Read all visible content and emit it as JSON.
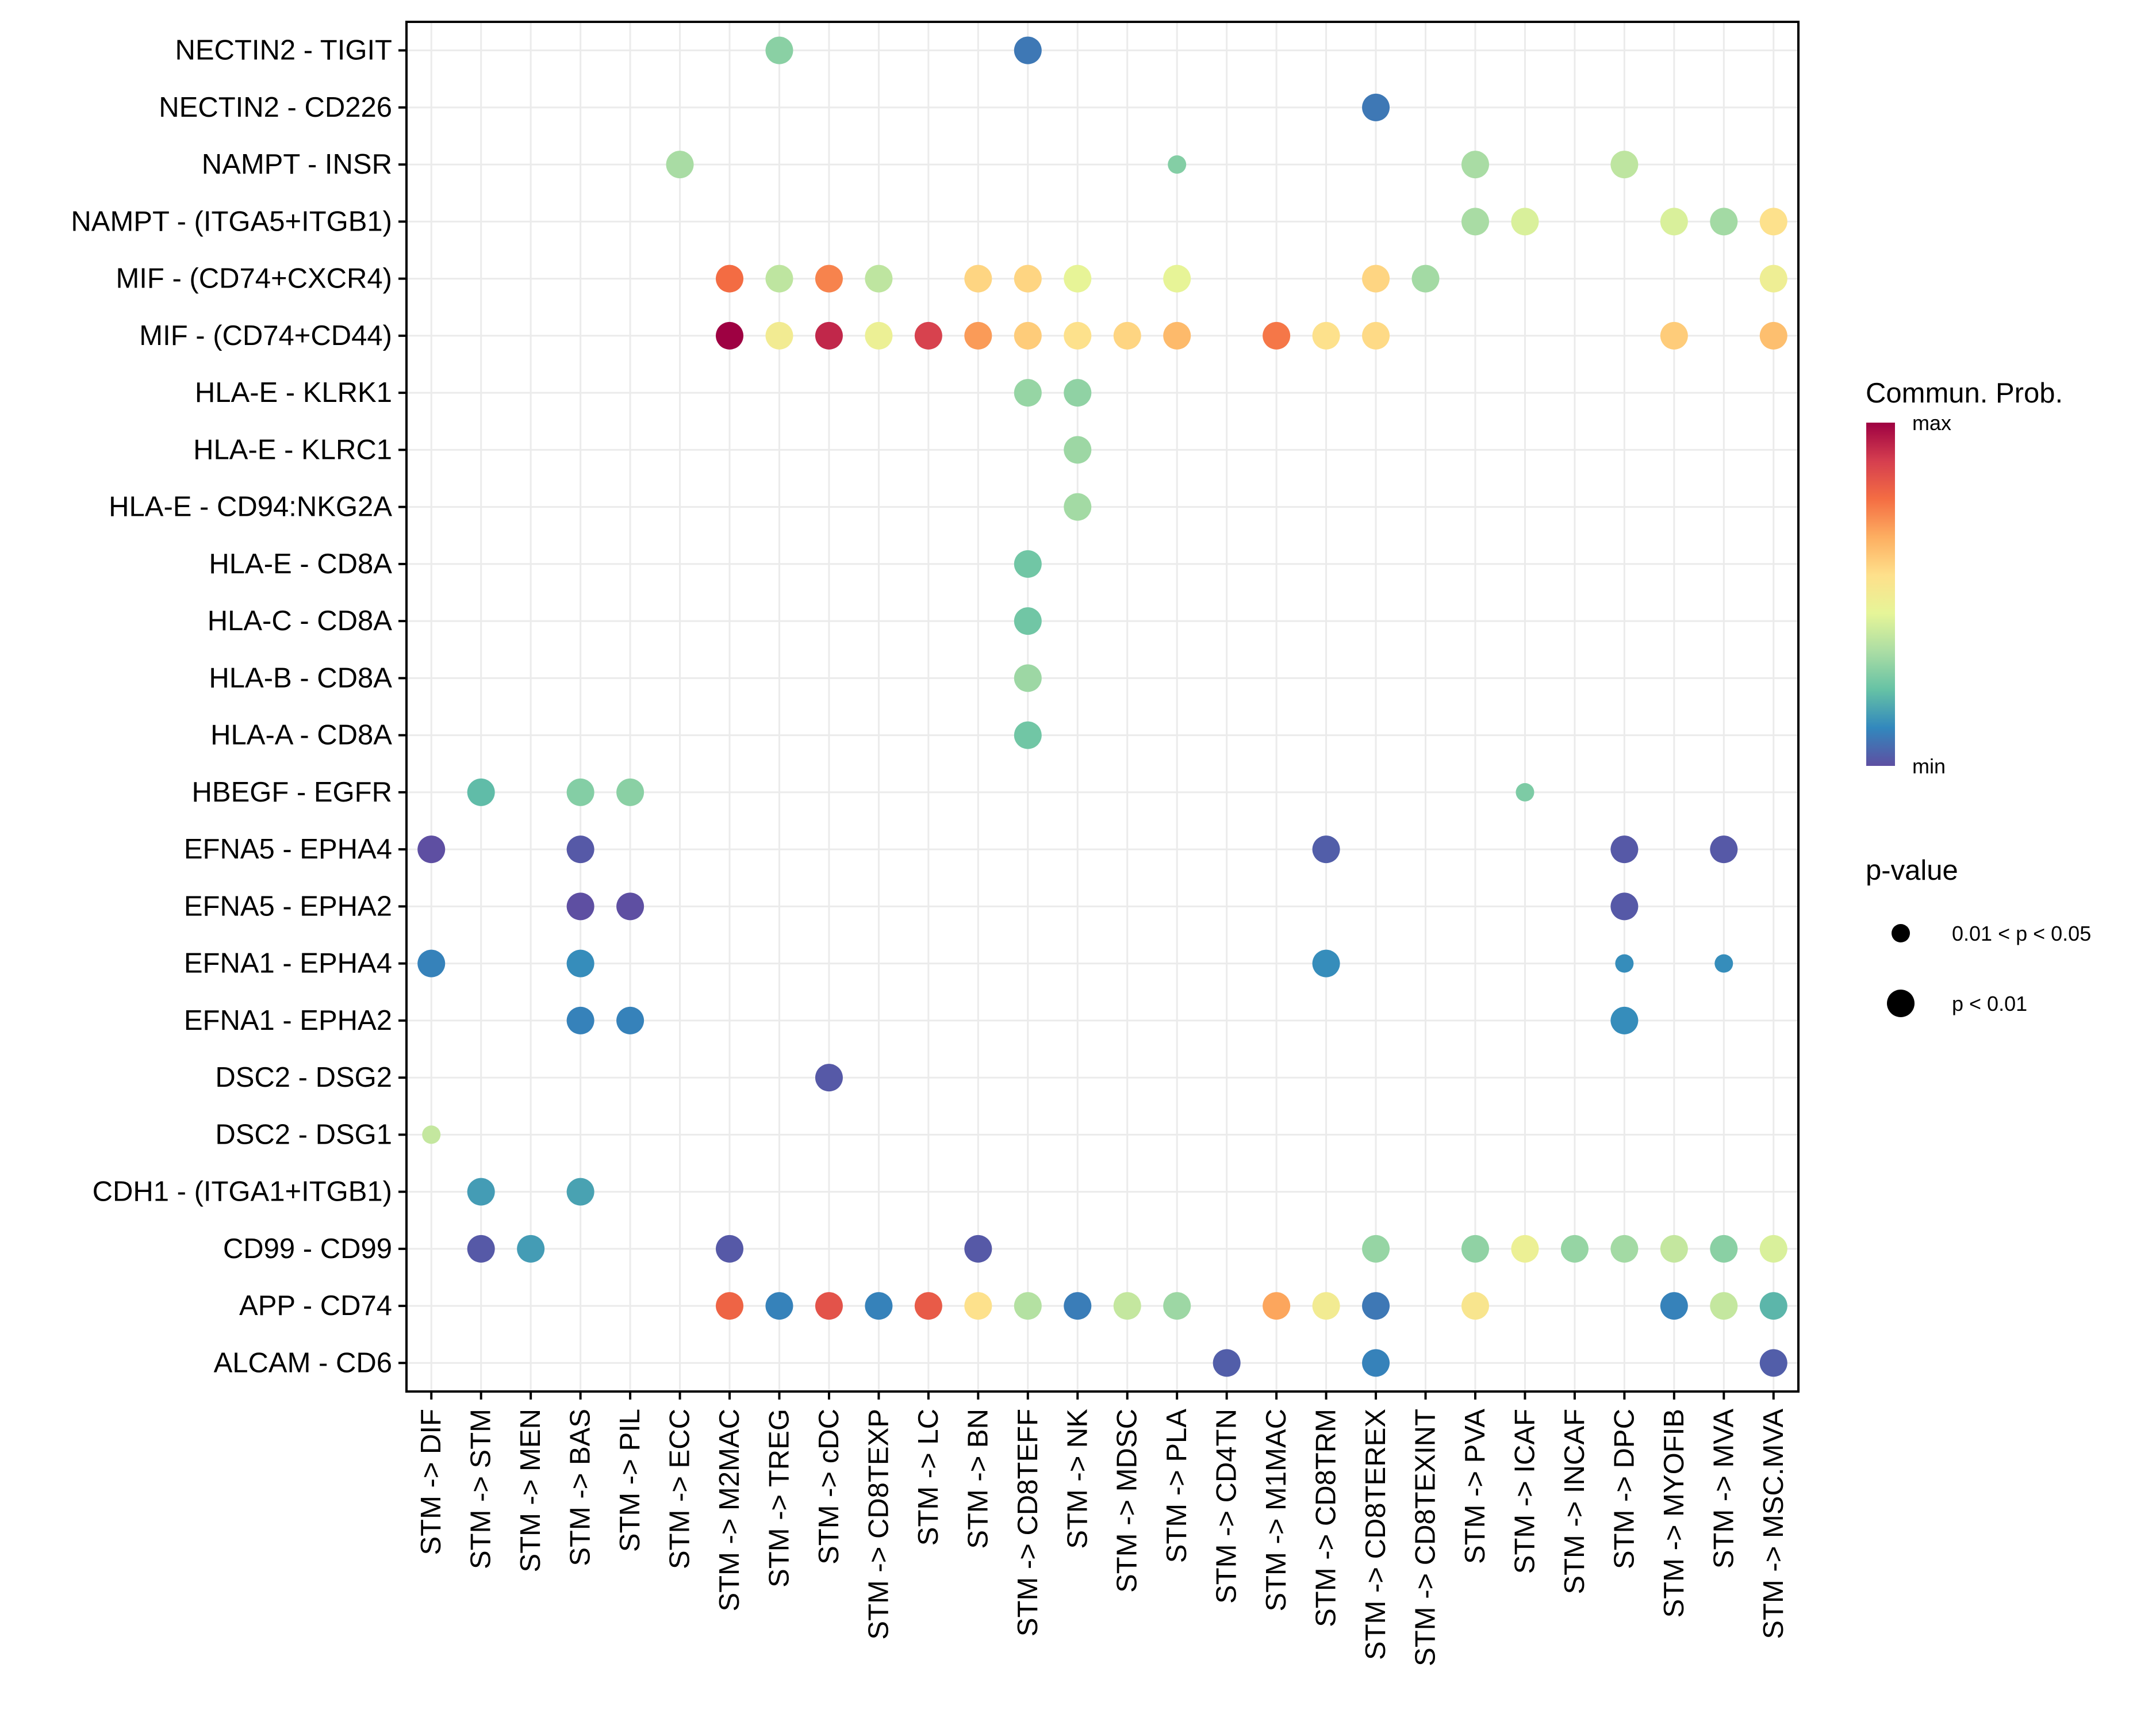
{
  "chart_data": {
    "type": "scatter",
    "subtype": "dot-plot",
    "title": "",
    "xlabel": "",
    "ylabel": "",
    "grid": true,
    "x_categories": [
      "STM -> DIF",
      "STM -> STM",
      "STM -> MEN",
      "STM -> BAS",
      "STM -> PIL",
      "STM -> ECC",
      "STM -> M2MAC",
      "STM -> TREG",
      "STM -> cDC",
      "STM -> CD8TEXP",
      "STM -> LC",
      "STM -> BN",
      "STM -> CD8TEFF",
      "STM -> NK",
      "STM -> MDSC",
      "STM -> PLA",
      "STM -> CD4TN",
      "STM -> M1MAC",
      "STM -> CD8TRM",
      "STM -> CD8TEREX",
      "STM -> CD8TEXINT",
      "STM -> PVA",
      "STM -> ICAF",
      "STM -> INCAF",
      "STM -> DPC",
      "STM -> MYOFIB",
      "STM -> MVA",
      "STM -> MSC.MVA"
    ],
    "y_categories": [
      "NECTIN2 - TIGIT",
      "NECTIN2 - CD226",
      "NAMPT - INSR",
      "NAMPT - (ITGA5+ITGB1)",
      "MIF - (CD74+CXCR4)",
      "MIF - (CD74+CD44)",
      "HLA-E - KLRK1",
      "HLA-E - KLRC1",
      "HLA-E - CD94:NKG2A",
      "HLA-E - CD8A",
      "HLA-C - CD8A",
      "HLA-B - CD8A",
      "HLA-A - CD8A",
      "HBEGF - EGFR",
      "EFNA5 - EPHA4",
      "EFNA5 - EPHA2",
      "EFNA1 - EPHA4",
      "EFNA1 - EPHA2",
      "DSC2 - DSG2",
      "DSC2 - DSG1",
      "CDH1 - (ITGA1+ITGB1)",
      "CD99 - CD99",
      "APP - CD74",
      "ALCAM - CD6"
    ],
    "value_scale": "normalized communication probability, 0 = min, 1 = max",
    "points": [
      {
        "y": "NECTIN2 - TIGIT",
        "x": "STM -> TREG",
        "prob": 0.28,
        "p": "p < 0.01"
      },
      {
        "y": "NECTIN2 - TIGIT",
        "x": "STM -> CD8TEFF",
        "prob": 0.08,
        "p": "p < 0.01"
      },
      {
        "y": "NECTIN2 - CD226",
        "x": "STM -> CD8TEREX",
        "prob": 0.08,
        "p": "p < 0.01"
      },
      {
        "y": "NAMPT - INSR",
        "x": "STM -> ECC",
        "prob": 0.33,
        "p": "p < 0.01"
      },
      {
        "y": "NAMPT - INSR",
        "x": "STM -> PLA",
        "prob": 0.27,
        "p": "0.01 < p < 0.05"
      },
      {
        "y": "NAMPT - INSR",
        "x": "STM -> PVA",
        "prob": 0.33,
        "p": "p < 0.01"
      },
      {
        "y": "NAMPT - INSR",
        "x": "STM -> DPC",
        "prob": 0.37,
        "p": "p < 0.01"
      },
      {
        "y": "NAMPT - (ITGA5+ITGB1)",
        "x": "STM -> PVA",
        "prob": 0.33,
        "p": "p < 0.01"
      },
      {
        "y": "NAMPT - (ITGA5+ITGB1)",
        "x": "STM -> ICAF",
        "prob": 0.42,
        "p": "p < 0.01"
      },
      {
        "y": "NAMPT - (ITGA5+ITGB1)",
        "x": "STM -> MYOFIB",
        "prob": 0.42,
        "p": "p < 0.01"
      },
      {
        "y": "NAMPT - (ITGA5+ITGB1)",
        "x": "STM -> MVA",
        "prob": 0.32,
        "p": "p < 0.01"
      },
      {
        "y": "NAMPT - (ITGA5+ITGB1)",
        "x": "STM -> MSC.MVA",
        "prob": 0.55,
        "p": "p < 0.01"
      },
      {
        "y": "MIF - (CD74+CXCR4)",
        "x": "STM -> M2MAC",
        "prob": 0.78,
        "p": "p < 0.01"
      },
      {
        "y": "MIF - (CD74+CXCR4)",
        "x": "STM -> TREG",
        "prob": 0.37,
        "p": "p < 0.01"
      },
      {
        "y": "MIF - (CD74+CXCR4)",
        "x": "STM -> cDC",
        "prob": 0.74,
        "p": "p < 0.01"
      },
      {
        "y": "MIF - (CD74+CXCR4)",
        "x": "STM -> CD8TEXP",
        "prob": 0.37,
        "p": "p < 0.01"
      },
      {
        "y": "MIF - (CD74+CXCR4)",
        "x": "STM -> BN",
        "prob": 0.58,
        "p": "p < 0.01"
      },
      {
        "y": "MIF - (CD74+CXCR4)",
        "x": "STM -> CD8TEFF",
        "prob": 0.58,
        "p": "p < 0.01"
      },
      {
        "y": "MIF - (CD74+CXCR4)",
        "x": "STM -> NK",
        "prob": 0.45,
        "p": "p < 0.01"
      },
      {
        "y": "MIF - (CD74+CXCR4)",
        "x": "STM -> PLA",
        "prob": 0.45,
        "p": "p < 0.01"
      },
      {
        "y": "MIF - (CD74+CXCR4)",
        "x": "STM -> CD8TEREX",
        "prob": 0.58,
        "p": "p < 0.01"
      },
      {
        "y": "MIF - (CD74+CXCR4)",
        "x": "STM -> CD8TEXINT",
        "prob": 0.32,
        "p": "p < 0.01"
      },
      {
        "y": "MIF - (CD74+CXCR4)",
        "x": "STM -> MSC.MVA",
        "prob": 0.48,
        "p": "p < 0.01"
      },
      {
        "y": "MIF - (CD74+CD44)",
        "x": "STM -> M2MAC",
        "prob": 1.0,
        "p": "p < 0.01"
      },
      {
        "y": "MIF - (CD74+CD44)",
        "x": "STM -> TREG",
        "prob": 0.5,
        "p": "p < 0.01"
      },
      {
        "y": "MIF - (CD74+CD44)",
        "x": "STM -> cDC",
        "prob": 0.93,
        "p": "p < 0.01"
      },
      {
        "y": "MIF - (CD74+CD44)",
        "x": "STM -> CD8TEXP",
        "prob": 0.47,
        "p": "p < 0.01"
      },
      {
        "y": "MIF - (CD74+CD44)",
        "x": "STM -> LC",
        "prob": 0.88,
        "p": "p < 0.01"
      },
      {
        "y": "MIF - (CD74+CD44)",
        "x": "STM -> BN",
        "prob": 0.7,
        "p": "p < 0.01"
      },
      {
        "y": "MIF - (CD74+CD44)",
        "x": "STM -> CD8TEFF",
        "prob": 0.6,
        "p": "p < 0.01"
      },
      {
        "y": "MIF - (CD74+CD44)",
        "x": "STM -> NK",
        "prob": 0.55,
        "p": "p < 0.01"
      },
      {
        "y": "MIF - (CD74+CD44)",
        "x": "STM -> MDSC",
        "prob": 0.58,
        "p": "p < 0.01"
      },
      {
        "y": "MIF - (CD74+CD44)",
        "x": "STM -> PLA",
        "prob": 0.64,
        "p": "p < 0.01"
      },
      {
        "y": "MIF - (CD74+CD44)",
        "x": "STM -> M1MAC",
        "prob": 0.76,
        "p": "p < 0.01"
      },
      {
        "y": "MIF - (CD74+CD44)",
        "x": "STM -> CD8TRM",
        "prob": 0.55,
        "p": "p < 0.01"
      },
      {
        "y": "MIF - (CD74+CD44)",
        "x": "STM -> CD8TEREX",
        "prob": 0.57,
        "p": "p < 0.01"
      },
      {
        "y": "MIF - (CD74+CD44)",
        "x": "STM -> MYOFIB",
        "prob": 0.6,
        "p": "p < 0.01"
      },
      {
        "y": "MIF - (CD74+CD44)",
        "x": "STM -> MSC.MVA",
        "prob": 0.63,
        "p": "p < 0.01"
      },
      {
        "y": "HLA-E - KLRK1",
        "x": "STM -> CD8TEFF",
        "prob": 0.3,
        "p": "p < 0.01"
      },
      {
        "y": "HLA-E - KLRK1",
        "x": "STM -> NK",
        "prob": 0.29,
        "p": "p < 0.01"
      },
      {
        "y": "HLA-E - KLRC1",
        "x": "STM -> NK",
        "prob": 0.31,
        "p": "p < 0.01"
      },
      {
        "y": "HLA-E - CD94:NKG2A",
        "x": "STM -> NK",
        "prob": 0.32,
        "p": "p < 0.01"
      },
      {
        "y": "HLA-E - CD8A",
        "x": "STM -> CD8TEFF",
        "prob": 0.24,
        "p": "p < 0.01"
      },
      {
        "y": "HLA-C - CD8A",
        "x": "STM -> CD8TEFF",
        "prob": 0.24,
        "p": "p < 0.01"
      },
      {
        "y": "HLA-B - CD8A",
        "x": "STM -> CD8TEFF",
        "prob": 0.31,
        "p": "p < 0.01"
      },
      {
        "y": "HLA-A - CD8A",
        "x": "STM -> CD8TEFF",
        "prob": 0.24,
        "p": "p < 0.01"
      },
      {
        "y": "HBEGF - EGFR",
        "x": "STM -> STM",
        "prob": 0.21,
        "p": "p < 0.01"
      },
      {
        "y": "HBEGF - EGFR",
        "x": "STM -> BAS",
        "prob": 0.27,
        "p": "p < 0.01"
      },
      {
        "y": "HBEGF - EGFR",
        "x": "STM -> PIL",
        "prob": 0.28,
        "p": "p < 0.01"
      },
      {
        "y": "HBEGF - EGFR",
        "x": "STM -> ICAF",
        "prob": 0.26,
        "p": "0.01 < p < 0.05"
      },
      {
        "y": "EFNA5 - EPHA4",
        "x": "STM -> DIF",
        "prob": 0.0,
        "p": "p < 0.01"
      },
      {
        "y": "EFNA5 - EPHA4",
        "x": "STM -> BAS",
        "prob": 0.02,
        "p": "p < 0.01"
      },
      {
        "y": "EFNA5 - EPHA4",
        "x": "STM -> CD8TRM",
        "prob": 0.03,
        "p": "p < 0.01"
      },
      {
        "y": "EFNA5 - EPHA4",
        "x": "STM -> DPC",
        "prob": 0.02,
        "p": "p < 0.01"
      },
      {
        "y": "EFNA5 - EPHA4",
        "x": "STM -> MVA",
        "prob": 0.02,
        "p": "p < 0.01"
      },
      {
        "y": "EFNA5 - EPHA2",
        "x": "STM -> BAS",
        "prob": 0.0,
        "p": "p < 0.01"
      },
      {
        "y": "EFNA5 - EPHA2",
        "x": "STM -> PIL",
        "prob": 0.0,
        "p": "p < 0.01"
      },
      {
        "y": "EFNA5 - EPHA2",
        "x": "STM -> DPC",
        "prob": 0.02,
        "p": "p < 0.01"
      },
      {
        "y": "EFNA1 - EPHA4",
        "x": "STM -> DIF",
        "prob": 0.1,
        "p": "p < 0.01"
      },
      {
        "y": "EFNA1 - EPHA4",
        "x": "STM -> BAS",
        "prob": 0.12,
        "p": "p < 0.01"
      },
      {
        "y": "EFNA1 - EPHA4",
        "x": "STM -> CD8TRM",
        "prob": 0.12,
        "p": "p < 0.01"
      },
      {
        "y": "EFNA1 - EPHA4",
        "x": "STM -> DPC",
        "prob": 0.12,
        "p": "0.01 < p < 0.05"
      },
      {
        "y": "EFNA1 - EPHA4",
        "x": "STM -> MVA",
        "prob": 0.12,
        "p": "0.01 < p < 0.05"
      },
      {
        "y": "EFNA1 - EPHA2",
        "x": "STM -> BAS",
        "prob": 0.1,
        "p": "p < 0.01"
      },
      {
        "y": "EFNA1 - EPHA2",
        "x": "STM -> PIL",
        "prob": 0.1,
        "p": "p < 0.01"
      },
      {
        "y": "EFNA1 - EPHA2",
        "x": "STM -> DPC",
        "prob": 0.12,
        "p": "p < 0.01"
      },
      {
        "y": "DSC2 - DSG2",
        "x": "STM -> cDC",
        "prob": 0.02,
        "p": "p < 0.01"
      },
      {
        "y": "DSC2 - DSG1",
        "x": "STM -> DIF",
        "prob": 0.38,
        "p": "0.01 < p < 0.05"
      },
      {
        "y": "CDH1 - (ITGA1+ITGB1)",
        "x": "STM -> STM",
        "prob": 0.15,
        "p": "p < 0.01"
      },
      {
        "y": "CDH1 - (ITGA1+ITGB1)",
        "x": "STM -> BAS",
        "prob": 0.16,
        "p": "p < 0.01"
      },
      {
        "y": "CD99 - CD99",
        "x": "STM -> STM",
        "prob": 0.02,
        "p": "p < 0.01"
      },
      {
        "y": "CD99 - CD99",
        "x": "STM -> MEN",
        "prob": 0.15,
        "p": "p < 0.01"
      },
      {
        "y": "CD99 - CD99",
        "x": "STM -> M2MAC",
        "prob": 0.02,
        "p": "p < 0.01"
      },
      {
        "y": "CD99 - CD99",
        "x": "STM -> BN",
        "prob": 0.02,
        "p": "p < 0.01"
      },
      {
        "y": "CD99 - CD99",
        "x": "STM -> CD8TEREX",
        "prob": 0.3,
        "p": "p < 0.01"
      },
      {
        "y": "CD99 - CD99",
        "x": "STM -> PVA",
        "prob": 0.29,
        "p": "p < 0.01"
      },
      {
        "y": "CD99 - CD99",
        "x": "STM -> ICAF",
        "prob": 0.47,
        "p": "p < 0.01"
      },
      {
        "y": "CD99 - CD99",
        "x": "STM -> INCAF",
        "prob": 0.3,
        "p": "p < 0.01"
      },
      {
        "y": "CD99 - CD99",
        "x": "STM -> DPC",
        "prob": 0.32,
        "p": "p < 0.01"
      },
      {
        "y": "CD99 - CD99",
        "x": "STM -> MYOFIB",
        "prob": 0.38,
        "p": "p < 0.01"
      },
      {
        "y": "CD99 - CD99",
        "x": "STM -> MVA",
        "prob": 0.28,
        "p": "p < 0.01"
      },
      {
        "y": "CD99 - CD99",
        "x": "STM -> MSC.MVA",
        "prob": 0.42,
        "p": "p < 0.01"
      },
      {
        "y": "APP - CD74",
        "x": "STM -> M2MAC",
        "prob": 0.8,
        "p": "p < 0.01"
      },
      {
        "y": "APP - CD74",
        "x": "STM -> TREG",
        "prob": 0.1,
        "p": "p < 0.01"
      },
      {
        "y": "APP - CD74",
        "x": "STM -> cDC",
        "prob": 0.84,
        "p": "p < 0.01"
      },
      {
        "y": "APP - CD74",
        "x": "STM -> CD8TEXP",
        "prob": 0.1,
        "p": "p < 0.01"
      },
      {
        "y": "APP - CD74",
        "x": "STM -> LC",
        "prob": 0.82,
        "p": "p < 0.01"
      },
      {
        "y": "APP - CD74",
        "x": "STM -> BN",
        "prob": 0.55,
        "p": "p < 0.01"
      },
      {
        "y": "APP - CD74",
        "x": "STM -> CD8TEFF",
        "prob": 0.35,
        "p": "p < 0.01"
      },
      {
        "y": "APP - CD74",
        "x": "STM -> NK",
        "prob": 0.09,
        "p": "p < 0.01"
      },
      {
        "y": "APP - CD74",
        "x": "STM -> MDSC",
        "prob": 0.38,
        "p": "p < 0.01"
      },
      {
        "y": "APP - CD74",
        "x": "STM -> PLA",
        "prob": 0.31,
        "p": "p < 0.01"
      },
      {
        "y": "APP - CD74",
        "x": "STM -> M1MAC",
        "prob": 0.68,
        "p": "p < 0.01"
      },
      {
        "y": "APP - CD74",
        "x": "STM -> CD8TRM",
        "prob": 0.5,
        "p": "p < 0.01"
      },
      {
        "y": "APP - CD74",
        "x": "STM -> CD8TEREX",
        "prob": 0.08,
        "p": "p < 0.01"
      },
      {
        "y": "APP - CD74",
        "x": "STM -> PVA",
        "prob": 0.53,
        "p": "p < 0.01"
      },
      {
        "y": "APP - CD74",
        "x": "STM -> MYOFIB",
        "prob": 0.1,
        "p": "p < 0.01"
      },
      {
        "y": "APP - CD74",
        "x": "STM -> MVA",
        "prob": 0.38,
        "p": "p < 0.01"
      },
      {
        "y": "APP - CD74",
        "x": "STM -> MSC.MVA",
        "prob": 0.2,
        "p": "p < 0.01"
      },
      {
        "y": "ALCAM - CD6",
        "x": "STM -> CD4TN",
        "prob": 0.03,
        "p": "p < 0.01"
      },
      {
        "y": "ALCAM - CD6",
        "x": "STM -> CD8TEREX",
        "prob": 0.1,
        "p": "p < 0.01"
      },
      {
        "y": "ALCAM - CD6",
        "x": "STM -> MSC.MVA",
        "prob": 0.03,
        "p": "p < 0.01"
      }
    ],
    "legend": {
      "position": "right",
      "color": {
        "title": "Commun. Prob.",
        "max_label": "max",
        "min_label": "min",
        "palette": [
          "#5E4FA2",
          "#3288BD",
          "#66C2A5",
          "#ABDDA4",
          "#E6F598",
          "#FEE08B",
          "#FDAE61",
          "#F46D43",
          "#D53E4F",
          "#9E0142"
        ]
      },
      "size": {
        "title": "p-value",
        "entries": [
          "0.01 < p < 0.05",
          "p < 0.01"
        ]
      }
    }
  }
}
